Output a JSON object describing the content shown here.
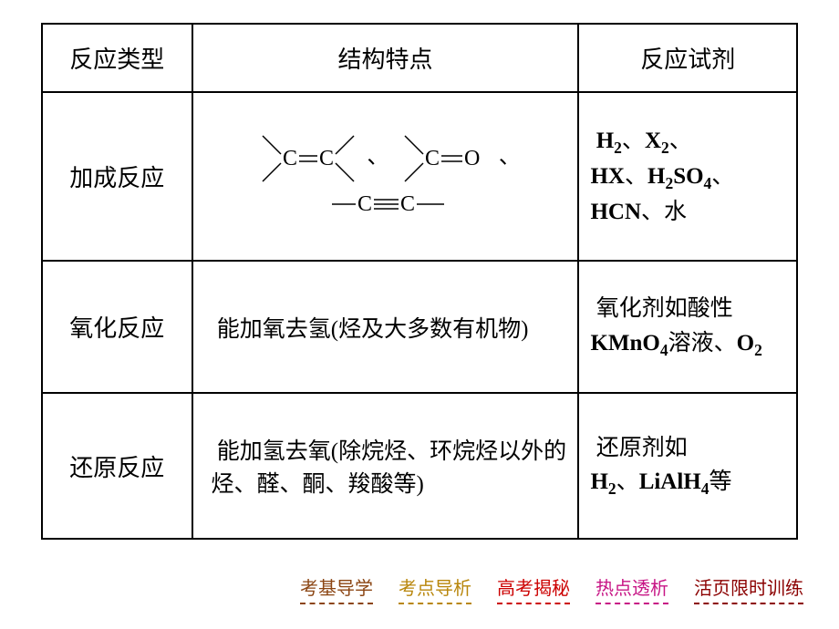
{
  "table": {
    "headers": {
      "type": "反应类型",
      "feature": "结构特点",
      "reagent": "反应试剂"
    },
    "rows": {
      "addition": {
        "type": "加成反应",
        "feature_sep1": "、",
        "feature_sep2": "、",
        "reagent_h2": "H",
        "reagent_sub2": "2",
        "reagent_sep": "、",
        "reagent_x2": "X",
        "reagent_hx": "HX",
        "reagent_h2so4": "H",
        "reagent_so4": "SO",
        "reagent_sub4": "4",
        "reagent_hcn": "HCN",
        "reagent_water": "水"
      },
      "oxidation": {
        "type": "氧化反应",
        "feature": "能加氧去氢(烃及大多数有机物)",
        "reagent_prefix": "氧化剂如酸性",
        "reagent_kmno4": "KMnO",
        "reagent_sub4": "4",
        "reagent_mid": "溶液、",
        "reagent_o2": "O",
        "reagent_sub2": "2"
      },
      "reduction": {
        "type": "还原反应",
        "feature": "能加氢去氧(除烷烃、环烷烃以外的烃、醛、酮、羧酸等)",
        "reagent_prefix": "还原剂如",
        "reagent_h2": "H",
        "reagent_sub2": "2",
        "reagent_sep": "、",
        "reagent_lialh4": "LiAlH",
        "reagent_sub4": "4",
        "reagent_suffix": "等"
      }
    }
  },
  "nav": {
    "items": [
      {
        "label": "考基导学",
        "color": "#8B4513"
      },
      {
        "label": "考点导析",
        "color": "#B8860B"
      },
      {
        "label": "高考揭秘",
        "color": "#CC0000"
      },
      {
        "label": "热点透析",
        "color": "#C71585"
      },
      {
        "label": "活页限时训练",
        "color": "#8B0000"
      }
    ]
  },
  "colors": {
    "border": "#000000",
    "background": "#ffffff",
    "text": "#000000"
  }
}
